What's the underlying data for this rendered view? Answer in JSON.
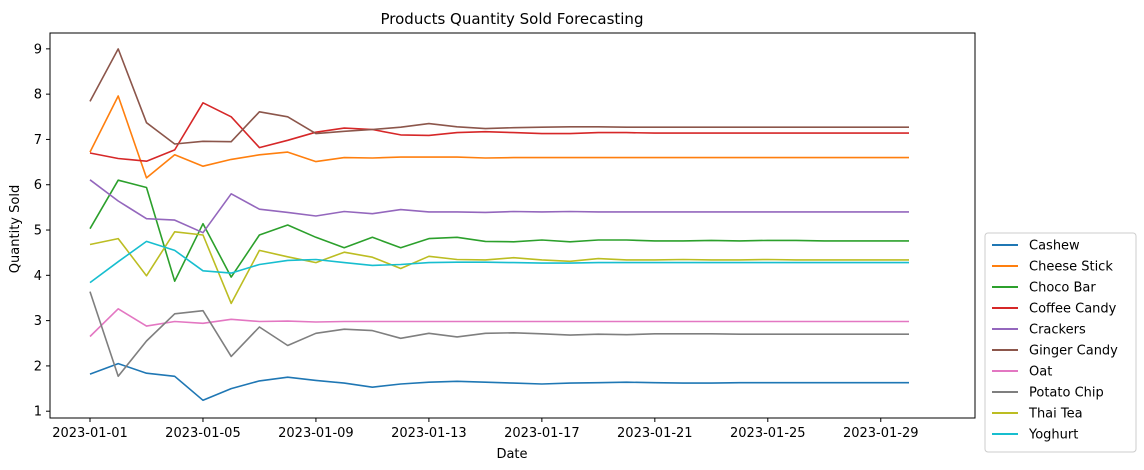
{
  "chart_data": {
    "type": "line",
    "title": "Products Quantity Sold Forecasting",
    "xlabel": "Date",
    "ylabel": "Quantity Sold",
    "ylim": [
      0.85,
      9.35
    ],
    "yticks": [
      1,
      2,
      3,
      4,
      5,
      6,
      7,
      8,
      9
    ],
    "xticks": [
      "2023-01-01",
      "2023-01-05",
      "2023-01-09",
      "2023-01-13",
      "2023-01-17",
      "2023-01-21",
      "2023-01-25",
      "2023-01-29"
    ],
    "grid": false,
    "legend_position": "right-bottom",
    "x": [
      "2023-01-01",
      "2023-01-02",
      "2023-01-03",
      "2023-01-04",
      "2023-01-05",
      "2023-01-06",
      "2023-01-07",
      "2023-01-08",
      "2023-01-09",
      "2023-01-10",
      "2023-01-11",
      "2023-01-12",
      "2023-01-13",
      "2023-01-14",
      "2023-01-15",
      "2023-01-16",
      "2023-01-17",
      "2023-01-18",
      "2023-01-19",
      "2023-01-20",
      "2023-01-21",
      "2023-01-22",
      "2023-01-23",
      "2023-01-24",
      "2023-01-25",
      "2023-01-26",
      "2023-01-27",
      "2023-01-28",
      "2023-01-29",
      "2023-01-30"
    ],
    "series": [
      {
        "name": "Cashew",
        "color": "#1f77b4",
        "values": [
          1.82,
          2.05,
          1.84,
          1.77,
          1.24,
          1.5,
          1.67,
          1.75,
          1.68,
          1.62,
          1.53,
          1.6,
          1.64,
          1.66,
          1.64,
          1.62,
          1.6,
          1.62,
          1.63,
          1.64,
          1.63,
          1.62,
          1.62,
          1.63,
          1.63,
          1.63,
          1.63,
          1.63,
          1.63,
          1.63
        ]
      },
      {
        "name": "Cheese Stick",
        "color": "#ff7f0e",
        "values": [
          6.72,
          7.96,
          6.15,
          6.66,
          6.41,
          6.56,
          6.66,
          6.72,
          6.51,
          6.6,
          6.59,
          6.61,
          6.61,
          6.61,
          6.59,
          6.6,
          6.6,
          6.6,
          6.6,
          6.6,
          6.6,
          6.6,
          6.6,
          6.6,
          6.6,
          6.6,
          6.6,
          6.6,
          6.6,
          6.6
        ]
      },
      {
        "name": "Choco Bar",
        "color": "#2ca02c",
        "values": [
          5.03,
          6.1,
          5.94,
          3.87,
          5.14,
          3.96,
          4.89,
          5.11,
          4.84,
          4.61,
          4.84,
          4.61,
          4.81,
          4.84,
          4.75,
          4.74,
          4.78,
          4.74,
          4.78,
          4.78,
          4.76,
          4.76,
          4.77,
          4.76,
          4.77,
          4.77,
          4.76,
          4.76,
          4.76,
          4.76
        ]
      },
      {
        "name": "Coffee Candy",
        "color": "#d62728",
        "values": [
          6.7,
          6.58,
          6.52,
          6.77,
          7.81,
          7.5,
          6.82,
          6.98,
          7.16,
          7.25,
          7.22,
          7.1,
          7.09,
          7.15,
          7.17,
          7.15,
          7.13,
          7.13,
          7.15,
          7.15,
          7.14,
          7.14,
          7.14,
          7.14,
          7.14,
          7.14,
          7.14,
          7.14,
          7.14,
          7.14
        ]
      },
      {
        "name": "Crackers",
        "color": "#9467bd",
        "values": [
          6.11,
          5.64,
          5.25,
          5.22,
          4.94,
          5.8,
          5.46,
          5.39,
          5.31,
          5.41,
          5.36,
          5.45,
          5.4,
          5.4,
          5.39,
          5.41,
          5.4,
          5.41,
          5.4,
          5.4,
          5.4,
          5.4,
          5.4,
          5.4,
          5.4,
          5.4,
          5.4,
          5.4,
          5.4,
          5.4
        ]
      },
      {
        "name": "Ginger Candy",
        "color": "#8c564b",
        "values": [
          7.84,
          9.0,
          7.37,
          6.9,
          6.96,
          6.95,
          7.61,
          7.5,
          7.13,
          7.18,
          7.22,
          7.27,
          7.35,
          7.28,
          7.24,
          7.26,
          7.27,
          7.28,
          7.28,
          7.27,
          7.27,
          7.27,
          7.27,
          7.27,
          7.27,
          7.27,
          7.27,
          7.27,
          7.27,
          7.27
        ]
      },
      {
        "name": "Oat",
        "color": "#e377c2",
        "values": [
          2.65,
          3.26,
          2.88,
          2.98,
          2.94,
          3.03,
          2.98,
          2.99,
          2.97,
          2.98,
          2.98,
          2.98,
          2.98,
          2.98,
          2.98,
          2.98,
          2.98,
          2.98,
          2.98,
          2.98,
          2.98,
          2.98,
          2.98,
          2.98,
          2.98,
          2.98,
          2.98,
          2.98,
          2.98,
          2.98
        ]
      },
      {
        "name": "Potato Chip",
        "color": "#7f7f7f",
        "values": [
          3.64,
          1.77,
          2.55,
          3.15,
          3.22,
          2.21,
          2.86,
          2.45,
          2.72,
          2.81,
          2.78,
          2.61,
          2.72,
          2.64,
          2.72,
          2.73,
          2.71,
          2.68,
          2.7,
          2.69,
          2.71,
          2.71,
          2.71,
          2.7,
          2.7,
          2.7,
          2.7,
          2.7,
          2.7,
          2.7
        ]
      },
      {
        "name": "Thai Tea",
        "color": "#bcbd22",
        "values": [
          4.68,
          4.81,
          3.99,
          4.96,
          4.89,
          3.38,
          4.55,
          4.41,
          4.28,
          4.51,
          4.4,
          4.15,
          4.42,
          4.35,
          4.34,
          4.39,
          4.34,
          4.31,
          4.37,
          4.34,
          4.34,
          4.35,
          4.34,
          4.34,
          4.35,
          4.34,
          4.34,
          4.34,
          4.34,
          4.34
        ]
      },
      {
        "name": "Yoghurt",
        "color": "#17becf",
        "values": [
          3.84,
          4.3,
          4.75,
          4.55,
          4.1,
          4.05,
          4.24,
          4.33,
          4.35,
          4.28,
          4.22,
          4.24,
          4.28,
          4.29,
          4.29,
          4.28,
          4.27,
          4.27,
          4.28,
          4.28,
          4.28,
          4.28,
          4.28,
          4.28,
          4.28,
          4.28,
          4.28,
          4.28,
          4.28,
          4.28
        ]
      }
    ]
  }
}
